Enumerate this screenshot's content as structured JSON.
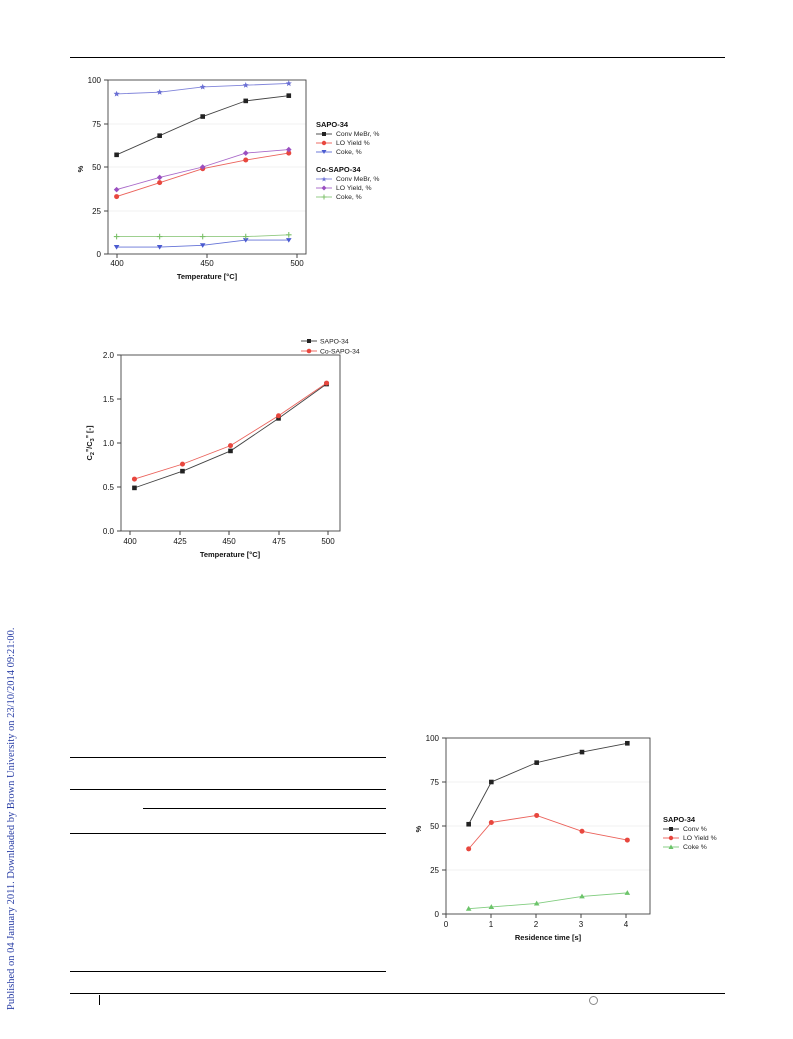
{
  "side_note": "Published on 04 January 2011. Downloaded by Brown University on 23/10/2014 09:21:00.",
  "figures": {
    "fig1": {
      "y_ticks": [
        "0",
        "25",
        "50",
        "75",
        "100"
      ],
      "x_ticks": [
        "400",
        "450",
        "500"
      ],
      "ylabel": "%",
      "xlabel": "Temperature [°C]",
      "legend": {
        "group1_title": "SAPO-34",
        "group1": [
          "Conv MeBr, %",
          "LO Yield %",
          "Coke, %"
        ],
        "group2_title": "Co-SAPO-34",
        "group2": [
          "Conv MeBr, %",
          "LO Yield, %",
          "Coke, %"
        ]
      }
    },
    "fig2": {
      "y_ticks": [
        "0.0",
        "0.5",
        "1.0",
        "1.5",
        "2.0"
      ],
      "x_ticks": [
        "400",
        "425",
        "450",
        "475",
        "500"
      ],
      "ylabel_main": "C",
      "ylabel_sub1": "2",
      "ylabel_sup1": "=",
      "ylabel_mid": "/C",
      "ylabel_sub2": "3",
      "ylabel_sup2": "=",
      "ylabel_tail": " [-]",
      "xlabel": "Temperature [°C]",
      "legend": [
        "SAPO-34",
        "Co-SAPO-34"
      ]
    },
    "fig3": {
      "y_ticks": [
        "0",
        "25",
        "50",
        "75",
        "100"
      ],
      "x_ticks": [
        "0",
        "1",
        "2",
        "3",
        "4"
      ],
      "ylabel": "%",
      "xlabel": "Residence time [s]",
      "legend_title": "SAPO-34",
      "legend": [
        "Conv %",
        "LO Yield %",
        "Coke %"
      ]
    }
  },
  "chart_data": [
    {
      "type": "line",
      "xlabel": "Temperature [°C]",
      "ylabel": "%",
      "xlim": [
        395,
        510
      ],
      "ylim": [
        0,
        100
      ],
      "x": [
        400,
        425,
        450,
        475,
        500
      ],
      "series": [
        {
          "name": "Conv MeBr, %",
          "group": "SAPO-34",
          "color": "#222222",
          "marker": "square",
          "values": [
            57,
            68,
            79,
            88,
            91
          ]
        },
        {
          "name": "LO Yield %",
          "group": "SAPO-34",
          "color": "#e8473e",
          "marker": "circle",
          "values": [
            33,
            41,
            49,
            54,
            58
          ]
        },
        {
          "name": "Coke, %",
          "group": "SAPO-34",
          "color": "#4a5ad0",
          "marker": "triangle-down",
          "values": [
            4,
            4,
            5,
            8,
            8
          ]
        },
        {
          "name": "Conv MeBr, %",
          "group": "Co-SAPO-34",
          "color": "#6a6fd4",
          "marker": "star",
          "values": [
            92,
            93,
            96,
            97,
            98
          ]
        },
        {
          "name": "LO Yield, %",
          "group": "Co-SAPO-34",
          "color": "#9a4fc0",
          "marker": "diamond",
          "values": [
            37,
            44,
            50,
            58,
            60
          ]
        },
        {
          "name": "Coke, %",
          "group": "Co-SAPO-34",
          "color": "#7cc06a",
          "marker": "plus",
          "values": [
            10,
            10,
            10,
            10,
            11
          ]
        }
      ]
    },
    {
      "type": "line",
      "xlabel": "Temperature [°C]",
      "ylabel": "C2=/C3= [-]",
      "xlim": [
        393,
        507
      ],
      "ylim": [
        0,
        2.0
      ],
      "x": [
        400,
        425,
        450,
        475,
        500
      ],
      "series": [
        {
          "name": "SAPO-34",
          "color": "#222222",
          "marker": "square",
          "values": [
            0.49,
            0.68,
            0.91,
            1.28,
            1.67
          ]
        },
        {
          "name": "Co-SAPO-34",
          "color": "#e8473e",
          "marker": "circle",
          "values": [
            0.59,
            0.76,
            0.97,
            1.31,
            1.68
          ]
        }
      ]
    },
    {
      "type": "line",
      "xlabel": "Residence time [s]",
      "ylabel": "%",
      "xlim": [
        0,
        4.5
      ],
      "ylim": [
        0,
        100
      ],
      "x": [
        0.5,
        1,
        2,
        3,
        4
      ],
      "series": [
        {
          "name": "Conv %",
          "group": "SAPO-34",
          "color": "#222222",
          "marker": "square",
          "values": [
            51,
            75,
            86,
            92,
            97
          ]
        },
        {
          "name": "LO Yield %",
          "group": "SAPO-34",
          "color": "#e8473e",
          "marker": "circle",
          "values": [
            37,
            52,
            56,
            47,
            42
          ]
        },
        {
          "name": "Coke %",
          "group": "SAPO-34",
          "color": "#6cc46a",
          "marker": "triangle",
          "values": [
            3,
            4,
            6,
            10,
            12
          ]
        }
      ]
    }
  ]
}
